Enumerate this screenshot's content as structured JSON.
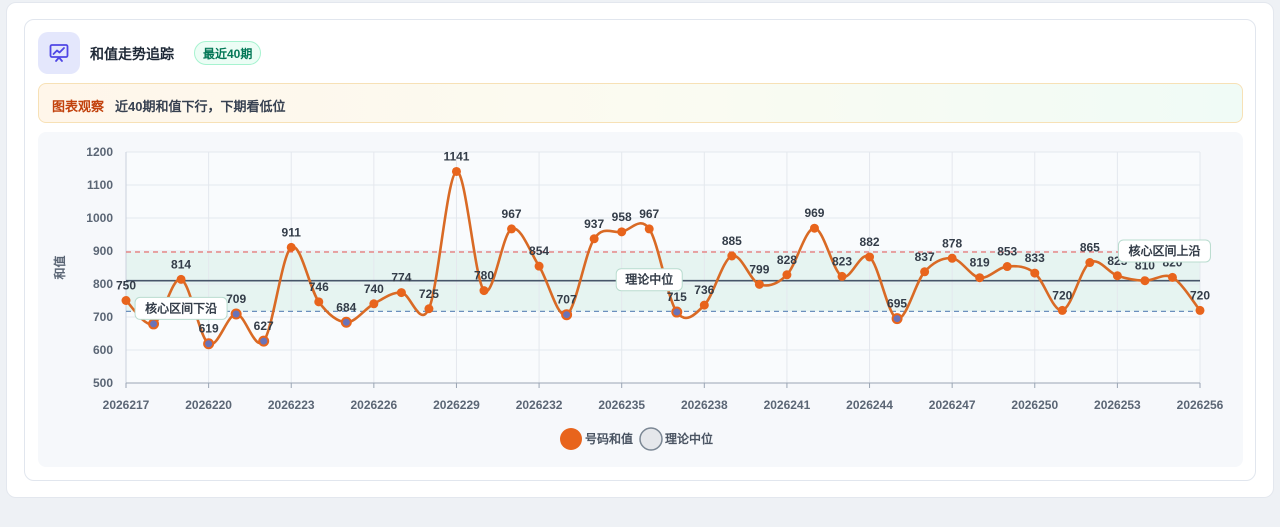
{
  "header": {
    "title": "和值走势追踪",
    "badge": "最近40期",
    "icon": "chart-icon"
  },
  "note": {
    "label": "图表观察",
    "text": "近40期和值下行，下期看低位"
  },
  "colors": {
    "series": "#e8641c",
    "line": "#d96a25",
    "median": "#475569",
    "upper": "#e67373",
    "lower": "#6b8fbd",
    "band": "#dff2ec"
  },
  "chart_data": {
    "type": "line",
    "ylabel": "和值",
    "ylim": [
      500,
      1200
    ],
    "yticks": [
      500,
      600,
      700,
      800,
      900,
      1000,
      1100,
      1200
    ],
    "x": [
      "2026217",
      "2026218",
      "2026219",
      "2026220",
      "2026221",
      "2026222",
      "2026223",
      "2026224",
      "2026225",
      "2026226",
      "2026227",
      "2026228",
      "2026229",
      "2026230",
      "2026231",
      "2026232",
      "2026233",
      "2026234",
      "2026235",
      "2026236",
      "2026237",
      "2026238",
      "2026239",
      "2026240",
      "2026241",
      "2026242",
      "2026243",
      "2026244",
      "2026245",
      "2026246",
      "2026247",
      "2026248",
      "2026249",
      "2026250",
      "2026251",
      "2026252",
      "2026253",
      "2026254",
      "2026255",
      "2026256"
    ],
    "xtick_labels": [
      "2026217",
      "2026220",
      "2026223",
      "2026226",
      "2026229",
      "2026232",
      "2026235",
      "2026238",
      "2026241",
      "2026244",
      "2026247",
      "2026250",
      "2026253",
      "2026256"
    ],
    "series": [
      {
        "name": "号码和值",
        "values": [
          750,
          679,
          814,
          619,
          709,
          627,
          911,
          746,
          684,
          740,
          774,
          725,
          1141,
          780,
          967,
          854,
          707,
          937,
          958,
          967,
          715,
          736,
          885,
          799,
          828,
          969,
          823,
          882,
          695,
          837,
          878,
          819,
          853,
          833,
          720,
          865,
          825,
          810,
          820,
          720
        ]
      }
    ],
    "reference_lines": [
      {
        "name": "理论中位",
        "value": 810
      },
      {
        "name": "核心区间上沿",
        "value": 897
      },
      {
        "name": "核心区间下沿",
        "value": 717
      }
    ],
    "legend": [
      "号码和值",
      "理论中位"
    ],
    "legend_position": "bottom",
    "grid": true
  }
}
